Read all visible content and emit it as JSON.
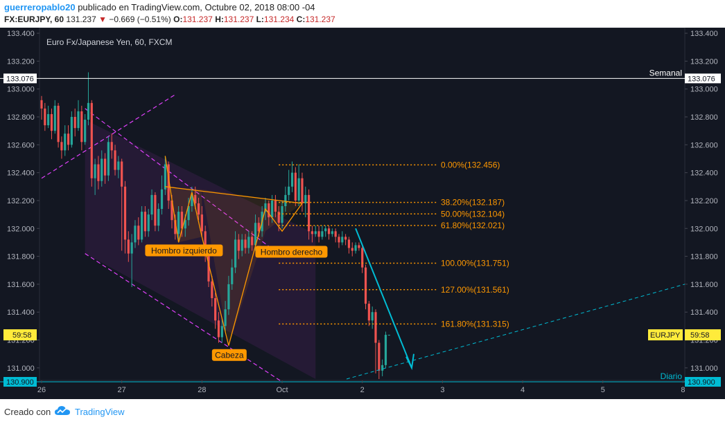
{
  "header": {
    "user": "guerreropablo20",
    "published_text": " publicado en TradingView.com, Octubre 02, 2018 08:00 -04",
    "symbol": "FX:EURJPY, 60",
    "last": "131.237",
    "change": "−0.669 (−0.51%)",
    "o_label": "O:",
    "o_val": "131.237",
    "h_label": "H:",
    "h_val": "131.237",
    "l_label": "L:",
    "l_val": "131.234",
    "c_label": "C:",
    "c_val": "131.237"
  },
  "footer": {
    "created": "Creado con",
    "brand": "TradingView"
  },
  "colors": {
    "bull": "#26a69a",
    "bear": "#ef5350",
    "fib": "#ff9800",
    "accent": "#00bcd4",
    "trend": "#e040fb"
  },
  "chart_data": {
    "type": "candlestick",
    "title": "Euro Fx/Japanese Yen, 60, FXCM",
    "ylim": [
      130.91,
      133.44
    ],
    "y_ticks": [
      133.4,
      133.2,
      133.0,
      132.8,
      132.6,
      132.4,
      132.2,
      132.0,
      131.8,
      131.6,
      131.4,
      131.2,
      131.0
    ],
    "y_tick_labels": [
      "133.400",
      "133.200",
      "133.000",
      "132.800",
      "132.600",
      "132.400",
      "132.200",
      "132.000",
      "131.800",
      "131.600",
      "131.400",
      "131.200",
      "131.000"
    ],
    "x_ticks": [
      {
        "label": "26",
        "bar": 0
      },
      {
        "label": "27",
        "bar": 24
      },
      {
        "label": "28",
        "bar": 48
      },
      {
        "label": "Oct",
        "bar": 72
      },
      {
        "label": "2",
        "bar": 96
      },
      {
        "label": "3",
        "bar": 120
      },
      {
        "label": "4",
        "bar": 144
      },
      {
        "label": "5",
        "bar": 168
      },
      {
        "label": "8",
        "bar": 192
      }
    ],
    "levels": [
      {
        "name": "Semanal",
        "value": 133.076,
        "label": "133.076"
      },
      {
        "name": "Diario",
        "value": 130.9,
        "label": "130.900"
      }
    ],
    "fib": [
      {
        "label": "0.00%(132.456)",
        "value": 132.456
      },
      {
        "label": "38.20%(132.187)",
        "value": 132.187
      },
      {
        "label": "50.00%(132.104)",
        "value": 132.104
      },
      {
        "label": "61.80%(132.021)",
        "value": 132.021
      },
      {
        "label": "100.00%(131.751)",
        "value": 131.751
      },
      {
        "label": "127.00%(131.561)",
        "value": 131.561
      },
      {
        "label": "161.80%(131.315)",
        "value": 131.315
      }
    ],
    "pattern_labels": [
      {
        "text": "Hombro izquierdo"
      },
      {
        "text": "Cabeza"
      },
      {
        "text": "Hombro derecho"
      }
    ],
    "countdown": "59:58",
    "symbol_tag": "EURJPY",
    "candles": [
      [
        132.92,
        132.86,
        132.95,
        132.78
      ],
      [
        132.86,
        132.74,
        132.9,
        132.7
      ],
      [
        132.74,
        132.82,
        132.88,
        132.72
      ],
      [
        132.82,
        132.7,
        132.86,
        132.64
      ],
      [
        132.7,
        132.88,
        132.92,
        132.68
      ],
      [
        132.88,
        132.62,
        132.9,
        132.58
      ],
      [
        132.62,
        132.56,
        132.66,
        132.5
      ],
      [
        132.56,
        132.68,
        132.74,
        132.52
      ],
      [
        132.68,
        132.6,
        132.74,
        132.56
      ],
      [
        132.6,
        132.8,
        132.84,
        132.58
      ],
      [
        132.8,
        132.72,
        132.86,
        132.66
      ],
      [
        132.72,
        132.84,
        132.92,
        132.7
      ],
      [
        132.84,
        132.62,
        132.88,
        132.56
      ],
      [
        132.62,
        132.78,
        132.82,
        132.6
      ],
      [
        132.78,
        132.9,
        133.12,
        132.74
      ],
      [
        132.9,
        132.36,
        132.92,
        132.3
      ],
      [
        132.36,
        132.46,
        132.5,
        132.24
      ],
      [
        132.46,
        132.34,
        132.52,
        132.28
      ],
      [
        132.34,
        132.5,
        132.56,
        132.3
      ],
      [
        132.5,
        132.38,
        132.54,
        132.32
      ],
      [
        132.38,
        132.62,
        132.66,
        132.34
      ],
      [
        132.62,
        132.56,
        132.68,
        132.5
      ],
      [
        132.56,
        132.42,
        132.6,
        132.38
      ],
      [
        132.42,
        132.48,
        132.52,
        132.36
      ],
      [
        132.48,
        132.3,
        132.5,
        131.84
      ],
      [
        132.3,
        131.92,
        132.34,
        131.82
      ],
      [
        131.92,
        131.82,
        131.98,
        131.76
      ],
      [
        131.82,
        131.9,
        131.96,
        131.58
      ],
      [
        131.9,
        132.02,
        132.06,
        131.86
      ],
      [
        132.02,
        131.92,
        132.08,
        131.88
      ],
      [
        131.92,
        132.12,
        132.16,
        131.9
      ],
      [
        132.12,
        131.98,
        132.16,
        131.94
      ],
      [
        131.98,
        132.1,
        132.14,
        131.94
      ],
      [
        132.1,
        132.24,
        132.28,
        132.06
      ],
      [
        132.24,
        132.02,
        132.26,
        131.98
      ],
      [
        132.02,
        132.14,
        132.18,
        131.98
      ],
      [
        132.14,
        132.28,
        132.38,
        132.1
      ],
      [
        132.28,
        132.46,
        132.52,
        132.24
      ],
      [
        132.46,
        132.2,
        132.48,
        132.14
      ],
      [
        132.2,
        132.06,
        132.24,
        132.0
      ],
      [
        132.06,
        131.96,
        132.1,
        131.92
      ],
      [
        131.96,
        132.12,
        132.16,
        131.92
      ],
      [
        132.12,
        132.0,
        132.16,
        131.94
      ],
      [
        132.0,
        132.06,
        132.1,
        131.94
      ],
      [
        132.06,
        132.16,
        132.22,
        132.02
      ],
      [
        132.16,
        132.24,
        132.3,
        132.12
      ],
      [
        132.24,
        132.18,
        132.3,
        132.14
      ],
      [
        132.18,
        132.1,
        132.22,
        132.06
      ],
      [
        132.1,
        131.98,
        132.16,
        131.94
      ],
      [
        131.98,
        131.8,
        132.02,
        131.76
      ],
      [
        131.8,
        131.62,
        131.84,
        131.58
      ],
      [
        131.62,
        131.5,
        131.66,
        131.44
      ],
      [
        131.5,
        131.34,
        131.54,
        131.28
      ],
      [
        131.34,
        131.22,
        131.4,
        131.18
      ],
      [
        131.22,
        131.3,
        131.36,
        131.18
      ],
      [
        131.3,
        131.42,
        131.48,
        131.26
      ],
      [
        131.42,
        131.6,
        131.66,
        131.38
      ],
      [
        131.6,
        131.72,
        131.78,
        131.56
      ],
      [
        131.72,
        131.92,
        131.98,
        131.68
      ],
      [
        131.92,
        131.84,
        131.96,
        131.78
      ],
      [
        131.84,
        131.92,
        131.96,
        131.8
      ],
      [
        131.92,
        131.86,
        131.96,
        131.82
      ],
      [
        131.86,
        131.94,
        131.98,
        131.82
      ],
      [
        131.94,
        131.88,
        131.98,
        131.84
      ],
      [
        131.88,
        132.04,
        132.1,
        131.84
      ],
      [
        132.04,
        131.98,
        132.08,
        131.94
      ],
      [
        131.98,
        132.12,
        132.16,
        131.94
      ],
      [
        132.12,
        132.18,
        132.22,
        132.06
      ],
      [
        132.18,
        132.08,
        132.2,
        132.02
      ],
      [
        132.08,
        132.2,
        132.24,
        132.04
      ],
      [
        132.2,
        132.12,
        132.24,
        132.08
      ],
      [
        132.12,
        132.04,
        132.16,
        131.98
      ],
      [
        132.04,
        132.16,
        132.2,
        132.0
      ],
      [
        132.16,
        132.24,
        132.3,
        132.12
      ],
      [
        132.24,
        132.3,
        132.42,
        132.2
      ],
      [
        132.3,
        132.4,
        132.48,
        132.26
      ],
      [
        132.4,
        132.2,
        132.44,
        132.16
      ],
      [
        132.2,
        132.36,
        132.46,
        132.16
      ],
      [
        132.36,
        132.18,
        132.4,
        132.12
      ],
      [
        132.18,
        132.24,
        132.3,
        132.08
      ],
      [
        132.24,
        131.98,
        132.28,
        131.92
      ],
      [
        131.98,
        131.96,
        132.02,
        131.9
      ],
      [
        131.96,
        131.98,
        132.02,
        131.94
      ],
      [
        131.98,
        131.94,
        132.02,
        131.9
      ],
      [
        131.94,
        131.98,
        132.02,
        131.92
      ],
      [
        131.98,
        132.0,
        132.02,
        131.94
      ],
      [
        132.0,
        131.96,
        132.02,
        131.92
      ],
      [
        131.96,
        131.98,
        132.0,
        131.94
      ],
      [
        131.98,
        131.94,
        132.0,
        131.9
      ],
      [
        131.94,
        131.9,
        131.96,
        131.86
      ],
      [
        131.9,
        131.94,
        131.98,
        131.88
      ],
      [
        131.94,
        131.92,
        131.96,
        131.88
      ],
      [
        131.92,
        131.86,
        131.94,
        131.82
      ],
      [
        131.86,
        131.84,
        131.9,
        131.8
      ],
      [
        131.84,
        131.88,
        131.9,
        131.82
      ],
      [
        131.88,
        131.86,
        131.9,
        131.84
      ],
      [
        131.86,
        131.72,
        131.88,
        131.68
      ],
      [
        131.72,
        131.46,
        131.74,
        131.42
      ],
      [
        131.46,
        131.34,
        131.48,
        131.3
      ],
      [
        131.34,
        131.4,
        131.44,
        131.28
      ],
      [
        131.4,
        131.18,
        131.42,
        130.96
      ],
      [
        131.18,
        130.98,
        131.2,
        130.92
      ],
      [
        130.98,
        131.02,
        131.06,
        130.94
      ],
      [
        131.02,
        131.237,
        131.26,
        131.0
      ],
      [
        131.237,
        131.237,
        131.237,
        131.234
      ]
    ]
  }
}
